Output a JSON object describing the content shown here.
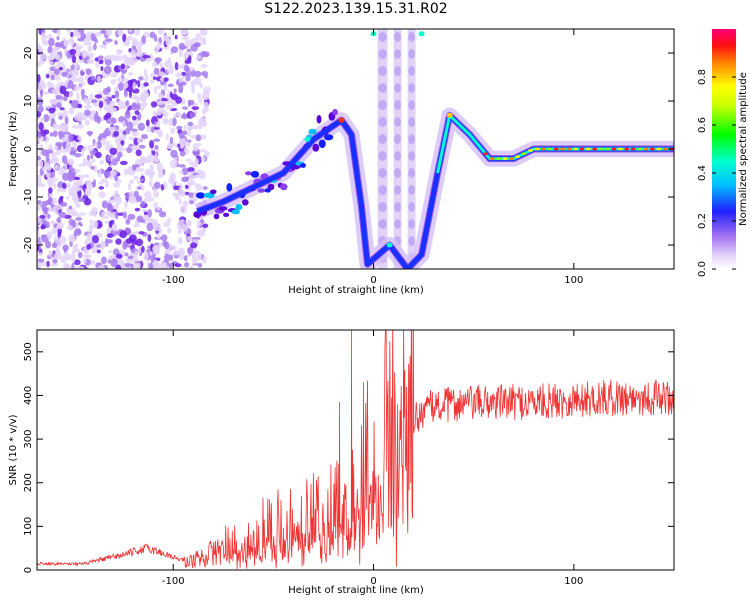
{
  "figure": {
    "title": "S122.2023.139.15.31.R02"
  },
  "chart_data": [
    {
      "type": "heatmap",
      "xlabel": "Height of straight line (km)",
      "ylabel": "Frequency (Hz)",
      "xlim": [
        -168,
        150
      ],
      "ylim": [
        -25,
        25
      ],
      "xticks": [
        -100,
        0,
        100
      ],
      "yticks": [
        -20,
        -10,
        0,
        10,
        20
      ],
      "colorbar": {
        "label": "Normalized spectral amplitude",
        "ticks": [
          0.0,
          0.2,
          0.4,
          0.6,
          0.8
        ],
        "range": [
          0,
          1
        ],
        "colormap": [
          "#ffffff",
          "#d9b8f5",
          "#8a2be2",
          "#5b00e0",
          "#0000ff",
          "#00bfff",
          "#00ffd0",
          "#00ff00",
          "#ffff00",
          "#ff8800",
          "#ff0000",
          "#ff0077"
        ]
      },
      "trace": {
        "description": "dominant spectral line vs height",
        "points": [
          [
            -88,
            -13
          ],
          [
            -75,
            -11
          ],
          [
            -60,
            -8
          ],
          [
            -45,
            -5
          ],
          [
            -30,
            2
          ],
          [
            -16,
            6
          ],
          [
            -11,
            3
          ],
          [
            -6,
            -12
          ],
          [
            -3,
            -24
          ],
          [
            8,
            -20
          ],
          [
            17,
            -25
          ],
          [
            24,
            -22
          ],
          [
            32,
            -5
          ],
          [
            38,
            7
          ],
          [
            48,
            3
          ],
          [
            58,
            -2
          ],
          [
            70,
            -2
          ],
          [
            80,
            0
          ],
          [
            100,
            0
          ],
          [
            120,
            0
          ],
          [
            150,
            0
          ]
        ]
      },
      "stripes": [
        [
          2,
          7
        ],
        [
          10,
          14
        ],
        [
          17,
          21
        ]
      ]
    },
    {
      "type": "line",
      "xlabel": "Height of straight line (km)",
      "ylabel": "SNR (10 * v/v)",
      "xlim": [
        -168,
        150
      ],
      "ylim": [
        0,
        550
      ],
      "xticks": [
        -100,
        0,
        100
      ],
      "yticks": [
        0,
        100,
        200,
        300,
        400,
        500
      ],
      "series": [
        {
          "color": "#ee3333",
          "envelope": [
            [
              -168,
              15
            ],
            [
              -145,
              14
            ],
            [
              -125,
              35
            ],
            [
              -113,
              50
            ],
            [
              -103,
              35
            ],
            [
              -93,
              18
            ],
            [
              -85,
              30
            ],
            [
              -70,
              60
            ],
            [
              -55,
              85
            ],
            [
              -40,
              105
            ],
            [
              -25,
              115
            ],
            [
              -15,
              135
            ],
            [
              -10,
              175
            ],
            [
              -5,
              220
            ],
            [
              0,
              270
            ],
            [
              5,
              290
            ],
            [
              10,
              310
            ],
            [
              15,
              325
            ],
            [
              20,
              345
            ],
            [
              25,
              365
            ],
            [
              30,
              375
            ],
            [
              40,
              380
            ],
            [
              60,
              385
            ],
            [
              80,
              385
            ],
            [
              100,
              390
            ],
            [
              120,
              395
            ],
            [
              150,
              395
            ]
          ],
          "spikes": [
            [
              -11,
              550
            ],
            [
              -17,
              385
            ],
            [
              -5,
              430
            ],
            [
              9,
              395
            ]
          ]
        }
      ]
    }
  ]
}
